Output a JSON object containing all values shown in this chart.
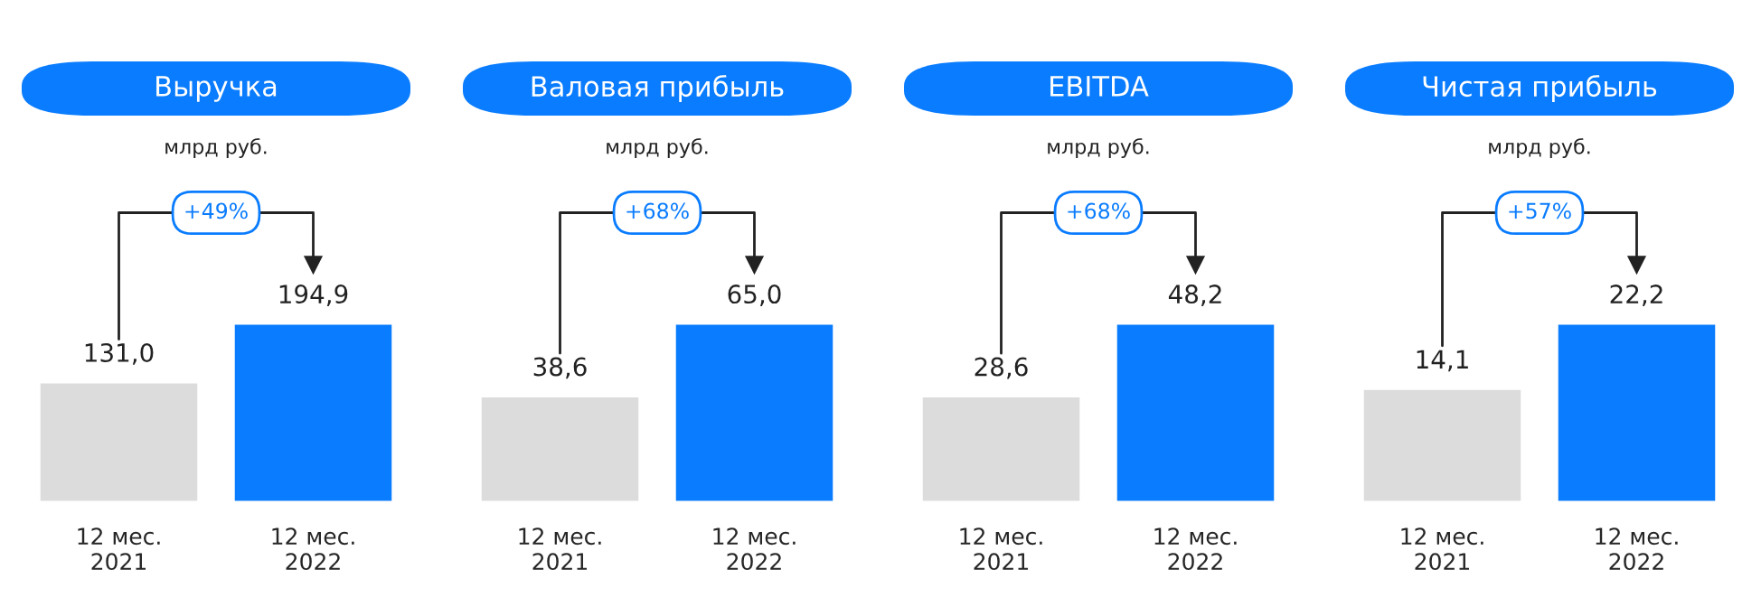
{
  "chart_data": [
    {
      "type": "bar",
      "title": "Выручка",
      "subtitle": "млрд руб.",
      "categories": [
        "12 мес.\n2021",
        "12 мес.\n2022"
      ],
      "values": [
        131.0,
        194.9
      ],
      "colors": [
        "#dcdcdc",
        "#0a7cff"
      ],
      "value_labels": [
        "131,0",
        "194,9"
      ],
      "annotations": [
        "+49%"
      ]
    },
    {
      "type": "bar",
      "title": "Валовая прибыль",
      "subtitle": "млрд руб.",
      "categories": [
        "12 мес.\n2021",
        "12 мес.\n2022"
      ],
      "values": [
        38.6,
        65.0
      ],
      "colors": [
        "#dcdcdc",
        "#0a7cff"
      ],
      "value_labels": [
        "38,6",
        "65,0"
      ],
      "annotations": [
        "+68%"
      ]
    },
    {
      "type": "bar",
      "title": "EBITDA",
      "subtitle": "млрд руб.",
      "categories": [
        "12 мес.\n2021",
        "12 мес.\n2022"
      ],
      "values": [
        28.6,
        48.2
      ],
      "colors": [
        "#dcdcdc",
        "#0a7cff"
      ],
      "value_labels": [
        "28,6",
        "48,2"
      ],
      "annotations": [
        "+68%"
      ]
    },
    {
      "type": "bar",
      "title": "Чистая прибыль",
      "subtitle": "млрд руб.",
      "categories": [
        "12 мес.\n2021",
        "12 мес.\n2022"
      ],
      "values": [
        14.1,
        22.2
      ],
      "colors": [
        "#dcdcdc",
        "#0a7cff"
      ],
      "value_labels": [
        "14,1",
        "22,2"
      ],
      "annotations": [
        "+57%"
      ]
    }
  ]
}
